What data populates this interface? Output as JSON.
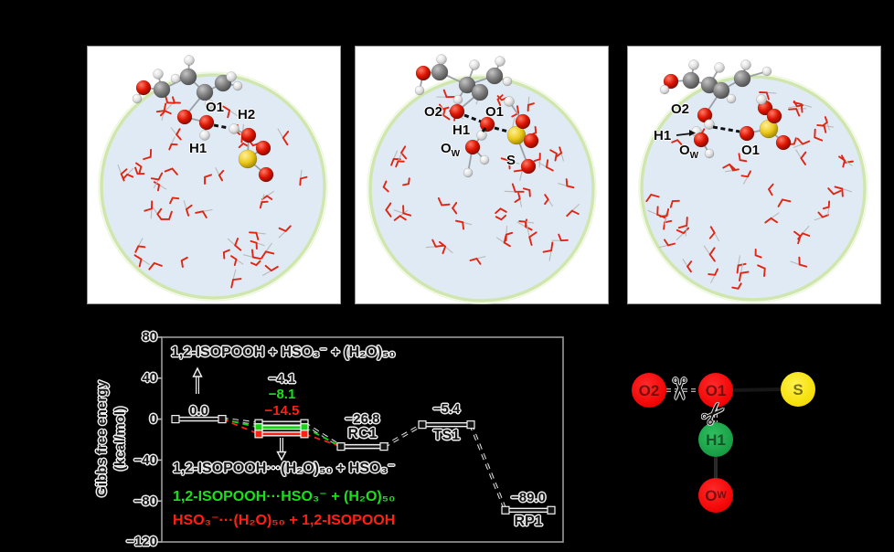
{
  "panels": [
    {
      "labels": [
        {
          "text": "O1"
        },
        {
          "text": "H2"
        },
        {
          "text": "H1"
        }
      ]
    },
    {
      "labels": [
        {
          "text": "O2"
        },
        {
          "text": "O1"
        },
        {
          "text": "H1"
        },
        {
          "text": "O",
          "sub": "W"
        },
        {
          "text": "S"
        }
      ]
    },
    {
      "labels": [
        {
          "text": "O2"
        },
        {
          "text": "H1"
        },
        {
          "text": "O",
          "sub": "W"
        },
        {
          "text": "O1"
        }
      ]
    }
  ],
  "chart_data": {
    "type": "reaction-energy-profile",
    "ylabel_line1": "Gibbs free energy",
    "ylabel_line2": "(kcal/mol)",
    "unit": "kcal/mol",
    "ylim": [
      -120,
      80
    ],
    "yticks": [
      80,
      40,
      0,
      -40,
      -80,
      -120
    ],
    "ytick_labels": [
      "80",
      "40",
      "0",
      "−40",
      "−80",
      "−120"
    ],
    "levels": [
      {
        "name": "reactants",
        "label": "0.0",
        "value": 0.0,
        "color": "#151515"
      },
      {
        "name": "complex-black",
        "label": "−4.1",
        "value": -4.1,
        "color": "#151515"
      },
      {
        "name": "complex-green",
        "label": "−8.1",
        "value": -8.1,
        "color": "#15d415"
      },
      {
        "name": "complex-red",
        "label": "−14.5",
        "value": -14.5,
        "color": "#ff2015"
      },
      {
        "name": "RC1",
        "label": "−26.8",
        "value": -26.8,
        "color": "#151515"
      },
      {
        "name": "TS1",
        "label": "−5.4",
        "value": -5.4,
        "color": "#151515"
      },
      {
        "name": "RP1",
        "label": "−89.0",
        "value": -89.0,
        "color": "#151515"
      }
    ],
    "connectors": [
      {
        "from": 0,
        "to": 1,
        "color": "#151515"
      },
      {
        "from": 0,
        "to": 2,
        "color": "#15d415"
      },
      {
        "from": 0,
        "to": 3,
        "color": "#ff2015"
      },
      {
        "from": 1,
        "to": 4,
        "color": "#151515"
      },
      {
        "from": 2,
        "to": 4,
        "color": "#15d415"
      },
      {
        "from": 3,
        "to": 4,
        "color": "#ff2015"
      },
      {
        "from": 4,
        "to": 5,
        "color": "#151515"
      },
      {
        "from": 5,
        "to": 6,
        "color": "#151515"
      }
    ],
    "annotations": {
      "reactants_label": "1,2-ISOPOOH + HSO₃⁻ + (H₂O)₅₀",
      "complex_black": "1,2-ISOPOOH···(H₂O)₅₀ + HSO₃⁻",
      "complex_green": "1,2-ISOPOOH···HSO₃⁻ + (H₂O)₅₀",
      "complex_red": "HSO₃⁻···(H₂O)₅₀ + 1,2-ISOPOOH"
    }
  },
  "legend": {
    "scissors_glyph": "✂",
    "atoms": [
      {
        "label": "O2",
        "color": "#ff0000"
      },
      {
        "label": "O1",
        "color": "#ff0000"
      },
      {
        "label": "S",
        "color": "#ffe900"
      },
      {
        "label": "H1",
        "color": "#1fa94e"
      },
      {
        "label": "O",
        "sub": "W",
        "color": "#ff0000"
      }
    ]
  },
  "colors": {
    "background": "#000000",
    "droplet_fill": "#e0eaf4",
    "droplet_rim": "#cfe7ae",
    "green_series": "#15d415",
    "red_series": "#ff2015"
  }
}
